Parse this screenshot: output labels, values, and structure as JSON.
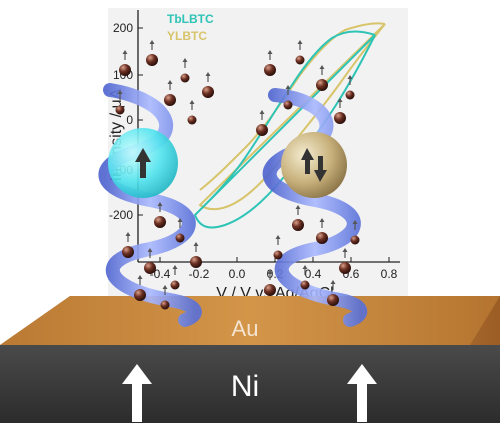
{
  "legend": [
    {
      "name": "TbLBTC",
      "color": "#2ec4b6"
    },
    {
      "name": "YLBTC",
      "color": "#d8c46a"
    }
  ],
  "axes": {
    "ylabel": "Intensity / μA",
    "xlabel": "V / V vs Ag/AgCl",
    "y_ticks": [
      "200",
      "100",
      "0",
      "-100",
      "-200"
    ],
    "x_ticks": [
      "-0.4",
      "-0.2",
      "0.0",
      "0.2",
      "0.4",
      "0.6",
      "0.8"
    ]
  },
  "layers": {
    "top": "Au",
    "bottom": "Ni"
  },
  "colors": {
    "gold": "#c9893a",
    "nickel": "#3a3a3a",
    "helix": "#6f86e6",
    "cyan_sphere": "#4fe3ee",
    "gold_sphere": "#c7b07a",
    "electron": "#5a2a20"
  },
  "icons": [
    "spin-up-arrow-icon",
    "spin-up-down-arrows-icon",
    "magnetization-arrow-icon"
  ]
}
